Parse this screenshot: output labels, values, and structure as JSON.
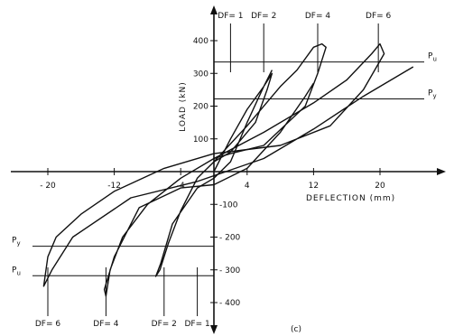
{
  "chart_data": {
    "type": "line",
    "title": "",
    "panel_label": "(c)",
    "xlabel": "DEFLECTION (mm)",
    "ylabel": "LOAD (kN)",
    "xlim": [
      -24,
      24
    ],
    "ylim": [
      -440,
      440
    ],
    "x_ticks": [
      {
        "v": -20,
        "label": "- 20"
      },
      {
        "v": -12,
        "label": "-12"
      },
      {
        "v": -4,
        "label": "-4"
      },
      {
        "v": 4,
        "label": "4"
      },
      {
        "v": 12,
        "label": "12"
      },
      {
        "v": 20,
        "label": "20"
      }
    ],
    "y_ticks": [
      {
        "v": 400,
        "label": "400"
      },
      {
        "v": 300,
        "label": "300"
      },
      {
        "v": 200,
        "label": "200"
      },
      {
        "v": 100,
        "label": "100"
      },
      {
        "v": -100,
        "label": "-100"
      },
      {
        "v": -200,
        "label": "- 200"
      },
      {
        "v": -300,
        "label": "- 300"
      },
      {
        "v": -400,
        "label": "- 400"
      }
    ],
    "reference_lines": [
      {
        "name": "Pu",
        "label": "P",
        "sub": "u",
        "y": 335
      },
      {
        "name": "Py",
        "label": "P",
        "sub": "y",
        "y": 222
      },
      {
        "name": "Py-neg",
        "label": "P",
        "sub": "y",
        "y": -228
      },
      {
        "name": "Pu-neg",
        "label": "P",
        "sub": "u",
        "y": -318
      }
    ],
    "ductility_markers": {
      "top": [
        {
          "label": "DF= 1",
          "x": 2
        },
        {
          "label": "DF= 2",
          "x": 6
        },
        {
          "label": "DF= 4",
          "x": 12.5
        },
        {
          "label": "DF= 6",
          "x": 19.8
        }
      ],
      "bottom": [
        {
          "label": "DF= 6",
          "x": -20
        },
        {
          "label": "DF= 4",
          "x": -13
        },
        {
          "label": "DF= 2",
          "x": -6
        },
        {
          "label": "DF= 1",
          "x": -2
        }
      ]
    },
    "series": [
      {
        "values": [
          [
            0,
            0
          ],
          [
            2,
            100
          ],
          [
            4,
            190
          ],
          [
            6,
            260
          ],
          [
            7,
            300
          ],
          [
            6.4,
            250
          ],
          [
            5,
            150
          ],
          [
            2,
            60
          ],
          [
            0,
            30
          ],
          [
            -2,
            -20
          ],
          [
            -4,
            -120
          ],
          [
            -5.5,
            -220
          ],
          [
            -6.5,
            -300
          ],
          [
            -7,
            -320
          ],
          [
            -6.4,
            -280
          ],
          [
            -5,
            -160
          ],
          [
            -2,
            -50
          ],
          [
            0,
            -20
          ],
          [
            2,
            30
          ],
          [
            4,
            150
          ],
          [
            6,
            260
          ],
          [
            7,
            310
          ]
        ]
      },
      {
        "values": [
          [
            0,
            30
          ],
          [
            4,
            140
          ],
          [
            8,
            260
          ],
          [
            10,
            310
          ],
          [
            12,
            380
          ],
          [
            13,
            390
          ],
          [
            13.5,
            380
          ],
          [
            12.5,
            300
          ],
          [
            11,
            200
          ],
          [
            6,
            80
          ],
          [
            2,
            55
          ],
          [
            0,
            40
          ],
          [
            -4,
            -20
          ],
          [
            -8,
            -100
          ],
          [
            -11,
            -200
          ],
          [
            -12.5,
            -300
          ],
          [
            -13,
            -380
          ],
          [
            -13.2,
            -360
          ],
          [
            -12,
            -260
          ],
          [
            -9,
            -110
          ],
          [
            -4,
            -50
          ],
          [
            0,
            -40
          ],
          [
            4,
            10
          ],
          [
            8,
            120
          ],
          [
            11,
            230
          ],
          [
            12,
            270
          ]
        ]
      },
      {
        "values": [
          [
            0,
            40
          ],
          [
            6,
            120
          ],
          [
            12,
            210
          ],
          [
            16,
            280
          ],
          [
            19,
            360
          ],
          [
            20,
            390
          ],
          [
            20.5,
            360
          ],
          [
            18,
            250
          ],
          [
            14,
            140
          ],
          [
            8,
            80
          ],
          [
            0,
            55
          ],
          [
            -6,
            10
          ],
          [
            -12,
            -60
          ],
          [
            -16,
            -130
          ],
          [
            -19,
            -200
          ],
          [
            -20,
            -260
          ],
          [
            -20.5,
            -350
          ],
          [
            -19.5,
            -300
          ],
          [
            -17,
            -200
          ],
          [
            -10,
            -80
          ],
          [
            -2,
            -30
          ],
          [
            6,
            40
          ],
          [
            12,
            130
          ],
          [
            18,
            230
          ],
          [
            24,
            320
          ]
        ]
      }
    ]
  }
}
